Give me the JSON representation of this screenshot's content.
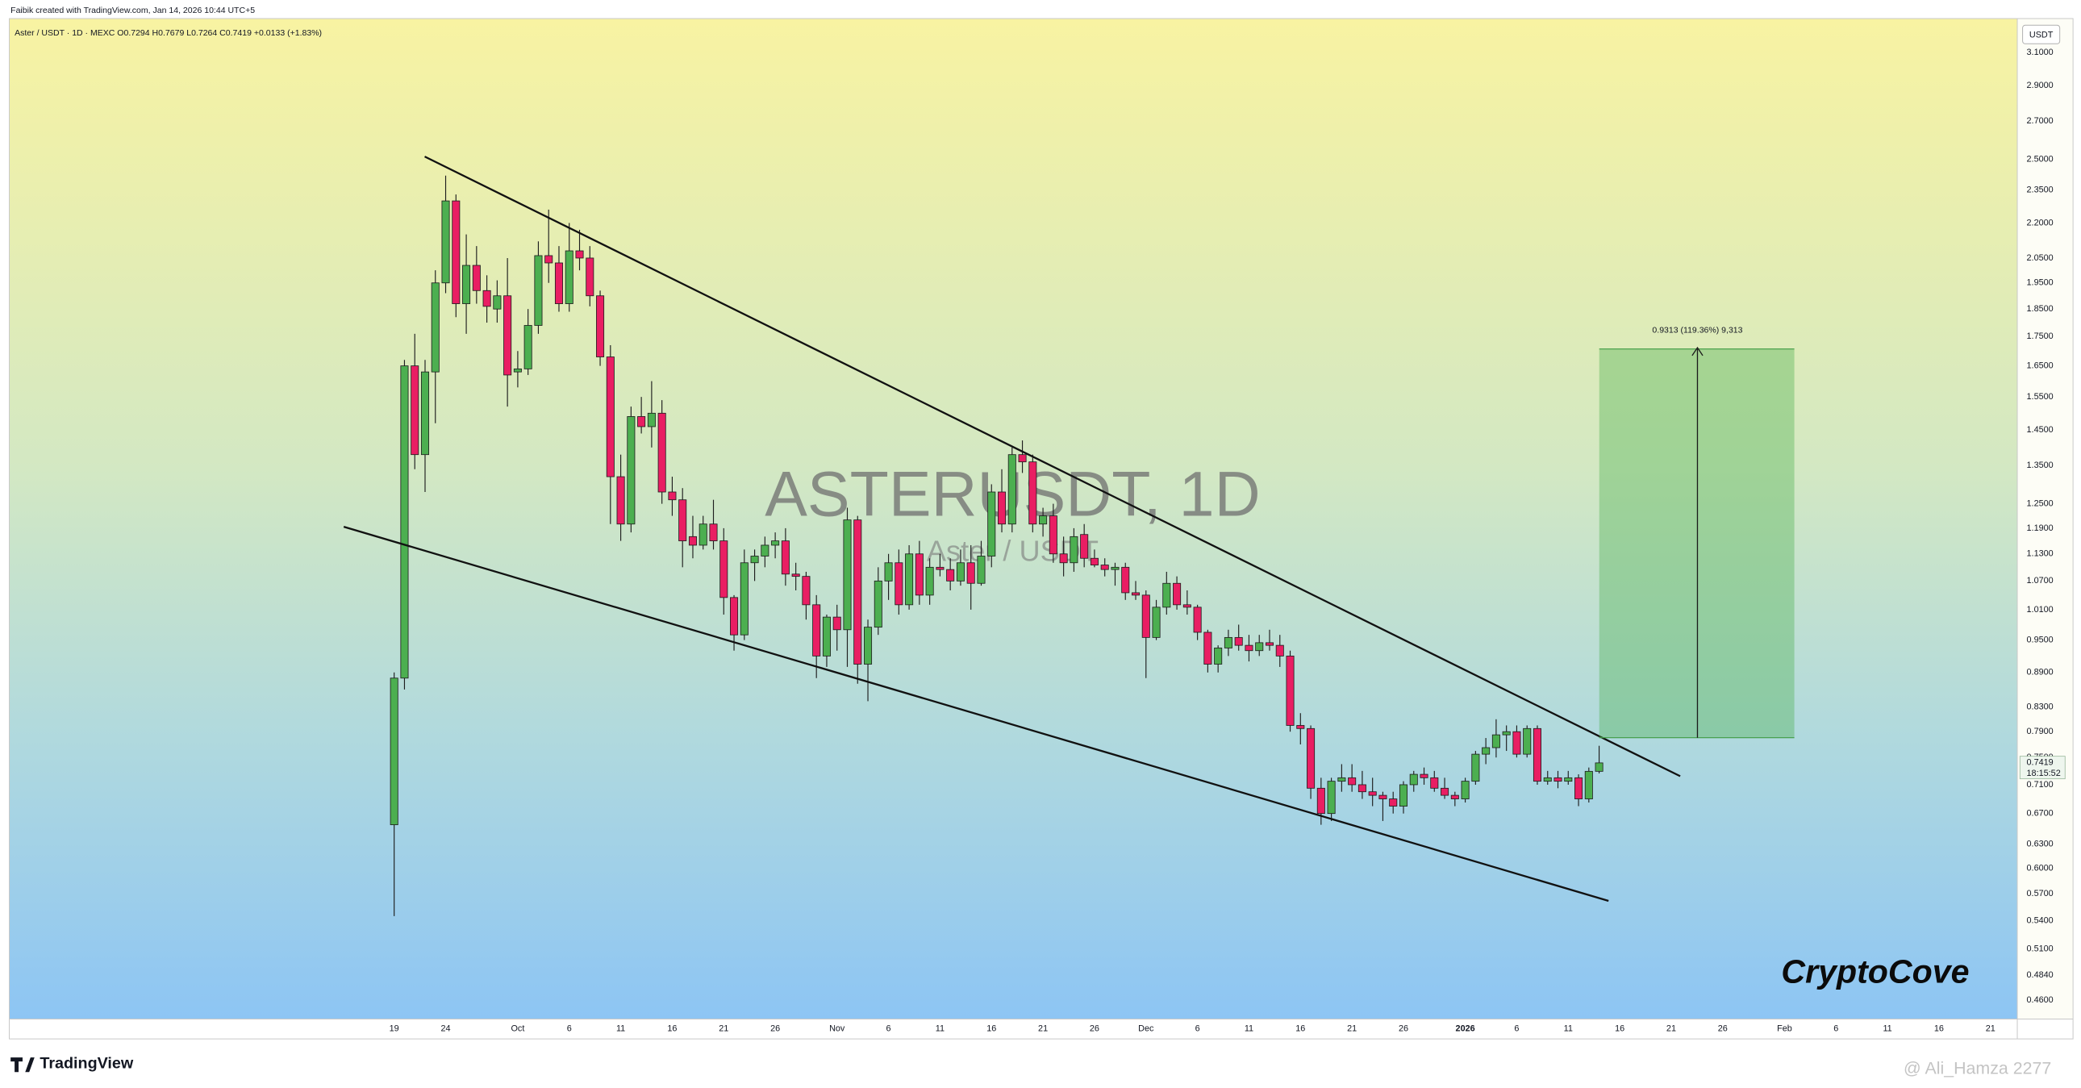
{
  "header": {
    "credit": "Faibik created with TradingView.com, Jan 14, 2026 10:44 UTC+5",
    "legend": "Aster / USDT · 1D · MEXC  O0.7294 H0.7679 L0.7264 C0.7419 +0.0133 (+1.83%)"
  },
  "chart_data": {
    "type": "candlestick",
    "watermark": "ASTERUSDT, 1D",
    "watermark_sub": "Aster / USDT",
    "currency": "USDT",
    "categories": [
      "19",
      null,
      null,
      null,
      null,
      "24",
      null,
      null,
      null,
      null,
      null,
      null,
      "Oct",
      null,
      null,
      null,
      null,
      "6",
      null,
      null,
      null,
      null,
      "11",
      null,
      null,
      null,
      null,
      "16",
      null,
      null,
      null,
      null,
      "21",
      null,
      null,
      null,
      null,
      "26",
      null,
      null,
      null,
      null,
      null,
      "Nov",
      null,
      null,
      null,
      null,
      "6",
      null,
      null,
      null,
      null,
      "11",
      null,
      null,
      null,
      null,
      "16",
      null,
      null,
      null,
      null,
      "21",
      null,
      null,
      null,
      null,
      "26",
      null,
      null,
      null,
      null,
      "Dec",
      null,
      null,
      null,
      null,
      "6",
      null,
      null,
      null,
      null,
      "11",
      null,
      null,
      null,
      null,
      "16",
      null,
      null,
      null,
      null,
      "21",
      null,
      null,
      null,
      null,
      "26",
      null,
      null,
      null,
      null,
      null,
      "2026",
      null,
      null,
      null,
      null,
      "6",
      null,
      null,
      null,
      null,
      "11",
      null,
      null,
      null,
      null,
      "16",
      null,
      null,
      null,
      null,
      "21",
      null,
      null,
      null,
      null,
      "26",
      null,
      null,
      null,
      null,
      null,
      "Feb",
      null,
      null,
      null,
      null,
      "6",
      null,
      null,
      null,
      null,
      "11",
      null,
      null,
      null,
      null,
      "16",
      null,
      null,
      null,
      null,
      "21",
      null,
      null
    ],
    "open": [
      0.655,
      0.88,
      1.65,
      1.38,
      1.63,
      1.95,
      2.3,
      1.87,
      2.02,
      1.92,
      1.85,
      1.9,
      1.63,
      1.64,
      1.79,
      2.06,
      2.03,
      1.87,
      2.08,
      2.05,
      1.9,
      1.68,
      1.32,
      1.2,
      1.49,
      1.46,
      1.5,
      1.28,
      1.26,
      1.17,
      1.15,
      1.2,
      1.16,
      1.035,
      0.96,
      1.11,
      1.125,
      1.15,
      1.16,
      1.085,
      1.08,
      1.02,
      0.92,
      0.995,
      0.97,
      1.21,
      0.905,
      0.975,
      1.07,
      1.11,
      1.02,
      1.13,
      1.04,
      1.1,
      1.095,
      1.07,
      1.11,
      1.065,
      1.125,
      1.28,
      1.2,
      1.38,
      1.36,
      1.2,
      1.22,
      1.13,
      1.11,
      1.175,
      1.12,
      1.105,
      1.095,
      1.1,
      1.045,
      1.04,
      0.955,
      1.015,
      1.065,
      1.02,
      1.015,
      0.965,
      0.905,
      0.935,
      0.955,
      0.94,
      0.93,
      0.945,
      0.94,
      0.92,
      0.8,
      0.795,
      0.705,
      0.67,
      0.715,
      0.72,
      0.71,
      0.7,
      0.695,
      0.69,
      0.68,
      0.71,
      0.725,
      0.72,
      0.705,
      0.695,
      0.69,
      0.715,
      0.755,
      0.765,
      0.785,
      0.79,
      0.755,
      0.795,
      0.715,
      0.72,
      0.715,
      0.72,
      0.69,
      0.7294,
      null,
      null,
      null,
      null,
      null,
      null,
      null,
      null,
      null,
      null,
      null,
      null,
      null,
      null,
      null,
      null,
      null,
      null,
      null,
      null,
      null,
      null,
      null,
      null,
      null,
      null,
      null,
      null,
      null,
      null,
      null,
      null,
      null,
      null,
      null,
      null,
      null,
      null,
      null,
      null
    ],
    "high": [
      0.89,
      1.67,
      1.76,
      1.67,
      2.0,
      2.42,
      2.33,
      2.15,
      2.1,
      1.98,
      1.96,
      2.05,
      1.7,
      1.85,
      2.12,
      2.26,
      2.1,
      2.2,
      2.17,
      2.1,
      1.92,
      1.72,
      1.38,
      1.52,
      1.55,
      1.6,
      1.54,
      1.32,
      1.29,
      1.22,
      1.22,
      1.26,
      1.19,
      1.04,
      1.14,
      1.14,
      1.17,
      1.18,
      1.19,
      1.11,
      1.09,
      1.04,
      1.0,
      1.02,
      1.24,
      1.22,
      0.99,
      1.1,
      1.13,
      1.14,
      1.15,
      1.16,
      1.12,
      1.13,
      1.12,
      1.14,
      1.15,
      1.16,
      1.3,
      1.34,
      1.4,
      1.42,
      1.38,
      1.24,
      1.25,
      1.17,
      1.19,
      1.2,
      1.14,
      1.12,
      1.11,
      1.11,
      1.07,
      1.05,
      1.03,
      1.09,
      1.08,
      1.05,
      1.02,
      0.97,
      0.94,
      0.97,
      0.98,
      0.96,
      0.96,
      0.97,
      0.96,
      0.93,
      0.82,
      0.8,
      0.72,
      0.72,
      0.74,
      0.74,
      0.73,
      0.72,
      0.7,
      0.7,
      0.715,
      0.73,
      0.735,
      0.73,
      0.72,
      0.7,
      0.72,
      0.76,
      0.78,
      0.81,
      0.8,
      0.8,
      0.8,
      0.8,
      0.73,
      0.73,
      0.73,
      0.725,
      0.735,
      0.7679,
      null,
      null,
      null,
      null,
      null,
      null,
      null,
      null,
      null,
      null,
      null,
      null,
      null,
      null,
      null,
      null,
      null,
      null,
      null,
      null,
      null,
      null,
      null,
      null,
      null,
      null,
      null,
      null,
      null,
      null,
      null,
      null,
      null,
      null,
      null,
      null,
      null,
      null,
      null,
      null
    ],
    "low": [
      0.545,
      0.86,
      1.34,
      1.28,
      1.47,
      1.91,
      1.82,
      1.76,
      1.87,
      1.8,
      1.8,
      1.52,
      1.58,
      1.62,
      1.76,
      1.95,
      1.84,
      1.84,
      2.0,
      1.86,
      1.65,
      1.2,
      1.16,
      1.18,
      1.44,
      1.4,
      1.25,
      1.22,
      1.1,
      1.12,
      1.14,
      1.14,
      1.0,
      0.93,
      0.95,
      1.07,
      1.1,
      1.12,
      1.06,
      1.05,
      0.99,
      0.88,
      0.9,
      0.93,
      0.9,
      0.87,
      0.84,
      0.96,
      1.03,
      1.0,
      1.01,
      1.02,
      1.02,
      1.08,
      1.05,
      1.06,
      1.01,
      1.06,
      1.1,
      1.18,
      1.18,
      1.33,
      1.18,
      1.17,
      1.11,
      1.08,
      1.09,
      1.1,
      1.1,
      1.08,
      1.06,
      1.03,
      1.03,
      0.88,
      0.95,
      1.0,
      1.01,
      1.0,
      0.95,
      0.89,
      0.89,
      0.92,
      0.93,
      0.91,
      0.92,
      0.93,
      0.9,
      0.79,
      0.77,
      0.69,
      0.655,
      0.66,
      0.7,
      0.7,
      0.69,
      0.68,
      0.66,
      0.67,
      0.67,
      0.7,
      0.71,
      0.7,
      0.69,
      0.68,
      0.685,
      0.71,
      0.74,
      0.75,
      0.76,
      0.75,
      0.75,
      0.71,
      0.71,
      0.705,
      0.71,
      0.68,
      0.685,
      0.7264,
      null,
      null,
      null,
      null,
      null,
      null,
      null,
      null,
      null,
      null,
      null,
      null,
      null,
      null,
      null,
      null,
      null,
      null,
      null,
      null,
      null,
      null,
      null,
      null,
      null,
      null,
      null,
      null,
      null,
      null,
      null,
      null,
      null,
      null,
      null,
      null,
      null,
      null,
      null,
      null
    ],
    "close": [
      0.88,
      1.65,
      1.38,
      1.63,
      1.95,
      2.3,
      1.87,
      2.02,
      1.92,
      1.86,
      1.9,
      1.62,
      1.64,
      1.79,
      2.06,
      2.03,
      1.87,
      2.08,
      2.05,
      1.9,
      1.68,
      1.32,
      1.2,
      1.49,
      1.46,
      1.5,
      1.28,
      1.26,
      1.16,
      1.15,
      1.2,
      1.16,
      1.035,
      0.96,
      1.11,
      1.125,
      1.15,
      1.16,
      1.085,
      1.08,
      1.02,
      0.92,
      0.995,
      0.97,
      1.21,
      0.905,
      0.975,
      1.07,
      1.11,
      1.02,
      1.13,
      1.04,
      1.1,
      1.095,
      1.07,
      1.11,
      1.065,
      1.125,
      1.28,
      1.2,
      1.38,
      1.36,
      1.2,
      1.22,
      1.13,
      1.11,
      1.17,
      1.12,
      1.105,
      1.095,
      1.1,
      1.045,
      1.04,
      0.955,
      1.015,
      1.065,
      1.02,
      1.015,
      0.965,
      0.905,
      0.935,
      0.955,
      0.94,
      0.93,
      0.945,
      0.94,
      0.92,
      0.8,
      0.795,
      0.705,
      0.67,
      0.715,
      0.72,
      0.71,
      0.7,
      0.695,
      0.69,
      0.68,
      0.71,
      0.725,
      0.72,
      0.705,
      0.695,
      0.69,
      0.715,
      0.755,
      0.765,
      0.785,
      0.79,
      0.755,
      0.795,
      0.715,
      0.72,
      0.715,
      0.72,
      0.69,
      0.7294,
      0.7419,
      null,
      null,
      null,
      null,
      null,
      null,
      null,
      null,
      null,
      null,
      null,
      null,
      null,
      null,
      null,
      null,
      null,
      null,
      null,
      null,
      null,
      null,
      null,
      null,
      null,
      null,
      null,
      null,
      null,
      null,
      null,
      null,
      null,
      null,
      null,
      null,
      null,
      null,
      null,
      null
    ],
    "up_color": "#4caf50",
    "down_color": "#e91e63",
    "log_scale": true,
    "ylim": [
      0.443,
      3.32
    ],
    "yticks": [
      {
        "value": 3.1,
        "label": "3.1000"
      },
      {
        "value": 2.9,
        "label": "2.9000"
      },
      {
        "value": 2.7,
        "label": "2.7000"
      },
      {
        "value": 2.5,
        "label": "2.5000"
      },
      {
        "value": 2.35,
        "label": "2.3500"
      },
      {
        "value": 2.2,
        "label": "2.2000"
      },
      {
        "value": 2.05,
        "label": "2.0500"
      },
      {
        "value": 1.95,
        "label": "1.9500"
      },
      {
        "value": 1.85,
        "label": "1.8500"
      },
      {
        "value": 1.75,
        "label": "1.7500"
      },
      {
        "value": 1.65,
        "label": "1.6500"
      },
      {
        "value": 1.55,
        "label": "1.5500"
      },
      {
        "value": 1.45,
        "label": "1.4500"
      },
      {
        "value": 1.35,
        "label": "1.3500"
      },
      {
        "value": 1.25,
        "label": "1.2500"
      },
      {
        "value": 1.19,
        "label": "1.1900"
      },
      {
        "value": 1.13,
        "label": "1.1300"
      },
      {
        "value": 1.07,
        "label": "1.0700"
      },
      {
        "value": 1.01,
        "label": "1.0100"
      },
      {
        "value": 0.95,
        "label": "0.9500"
      },
      {
        "value": 0.89,
        "label": "0.8900"
      },
      {
        "value": 0.83,
        "label": "0.8300"
      },
      {
        "value": 0.79,
        "label": "0.7900"
      },
      {
        "value": 0.75,
        "label": "0.7500"
      },
      {
        "value": 0.71,
        "label": "0.7100"
      },
      {
        "value": 0.67,
        "label": "0.6700"
      },
      {
        "value": 0.63,
        "label": "0.6300"
      },
      {
        "value": 0.6,
        "label": "0.6000"
      },
      {
        "value": 0.57,
        "label": "0.5700"
      },
      {
        "value": 0.54,
        "label": "0.5400"
      },
      {
        "value": 0.51,
        "label": "0.5100"
      },
      {
        "value": 0.484,
        "label": "0.4840"
      },
      {
        "value": 0.46,
        "label": "0.4600"
      }
    ],
    "last_price": 0.7419,
    "countdown": "18:15:52",
    "annotation": "0.9313 (119.36%) 9,313"
  },
  "footer": {
    "brand": "TradingView",
    "signature": "CryptoCove",
    "watermark": "@ Ali_Hamza 2277"
  }
}
